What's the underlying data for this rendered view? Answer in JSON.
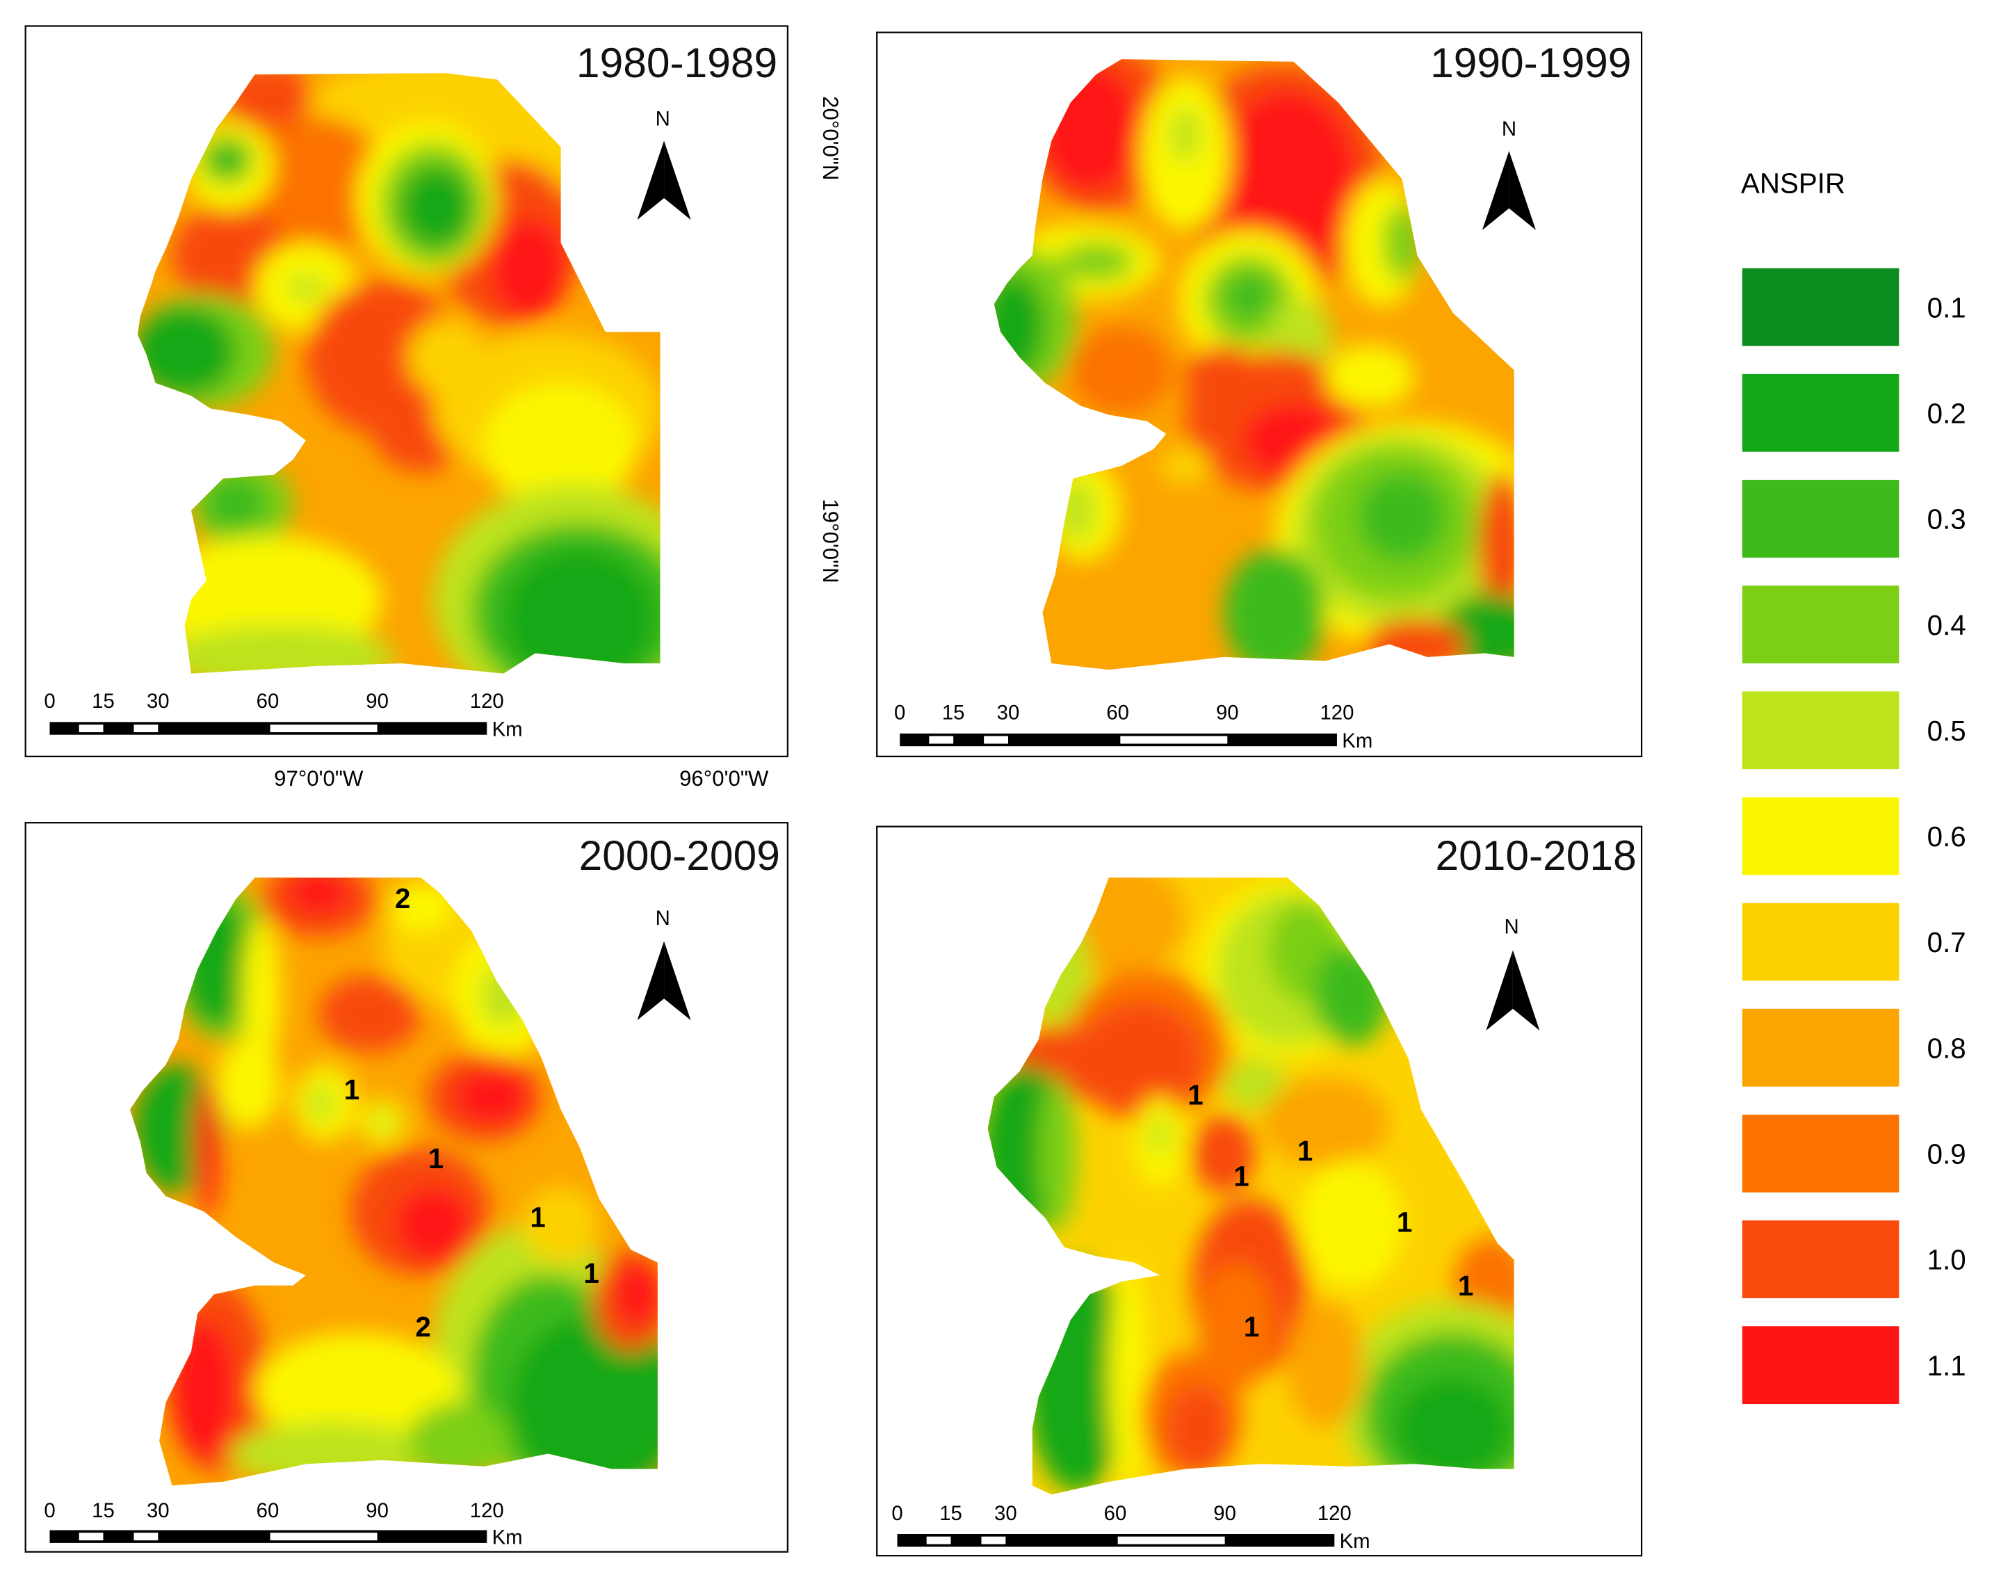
{
  "legend": {
    "title": "ANSPIR",
    "classes": [
      {
        "label": "0.1",
        "color": "#0a8c1e"
      },
      {
        "label": "0.2",
        "color": "#12a818"
      },
      {
        "label": "0.3",
        "color": "#3cbb1a"
      },
      {
        "label": "0.4",
        "color": "#7ccf14"
      },
      {
        "label": "0.5",
        "color": "#bde31a"
      },
      {
        "label": "0.6",
        "color": "#fbf700"
      },
      {
        "label": "0.7",
        "color": "#fdd200"
      },
      {
        "label": "0.8",
        "color": "#fca400"
      },
      {
        "label": "0.9",
        "color": "#fb7200"
      },
      {
        "label": "1.0",
        "color": "#f84a0c"
      },
      {
        "label": "1.1",
        "color": "#ff1414"
      }
    ]
  },
  "panels": [
    {
      "title": "1980-1989",
      "north": "N",
      "scale": {
        "ticks": [
          "0",
          "15",
          "30",
          "60",
          "90",
          "120"
        ],
        "unit": "Km"
      },
      "labels": []
    },
    {
      "title": "1990-1999",
      "north": "N",
      "scale": {
        "ticks": [
          "0",
          "15",
          "30",
          "60",
          "90",
          "120"
        ],
        "unit": "Km"
      },
      "labels": []
    },
    {
      "title": "2000-2009",
      "north": "N",
      "scale": {
        "ticks": [
          "0",
          "15",
          "30",
          "60",
          "90",
          "120"
        ],
        "unit": "Km"
      },
      "labels": [
        "2",
        "1",
        "1",
        "1",
        "1",
        "2"
      ]
    },
    {
      "title": "2010-2018",
      "north": "N",
      "scale": {
        "ticks": [
          "0",
          "15",
          "30",
          "60",
          "90",
          "120"
        ],
        "unit": "Km"
      },
      "labels": [
        "1",
        "1",
        "1",
        "1",
        "1",
        "1"
      ]
    }
  ],
  "coordinates": {
    "lat_top": "20°0'0\"N",
    "lat_bottom": "19°0'0\"N",
    "lon_left": "97°0'0\"W",
    "lon_right": "96°0'0\"W"
  }
}
